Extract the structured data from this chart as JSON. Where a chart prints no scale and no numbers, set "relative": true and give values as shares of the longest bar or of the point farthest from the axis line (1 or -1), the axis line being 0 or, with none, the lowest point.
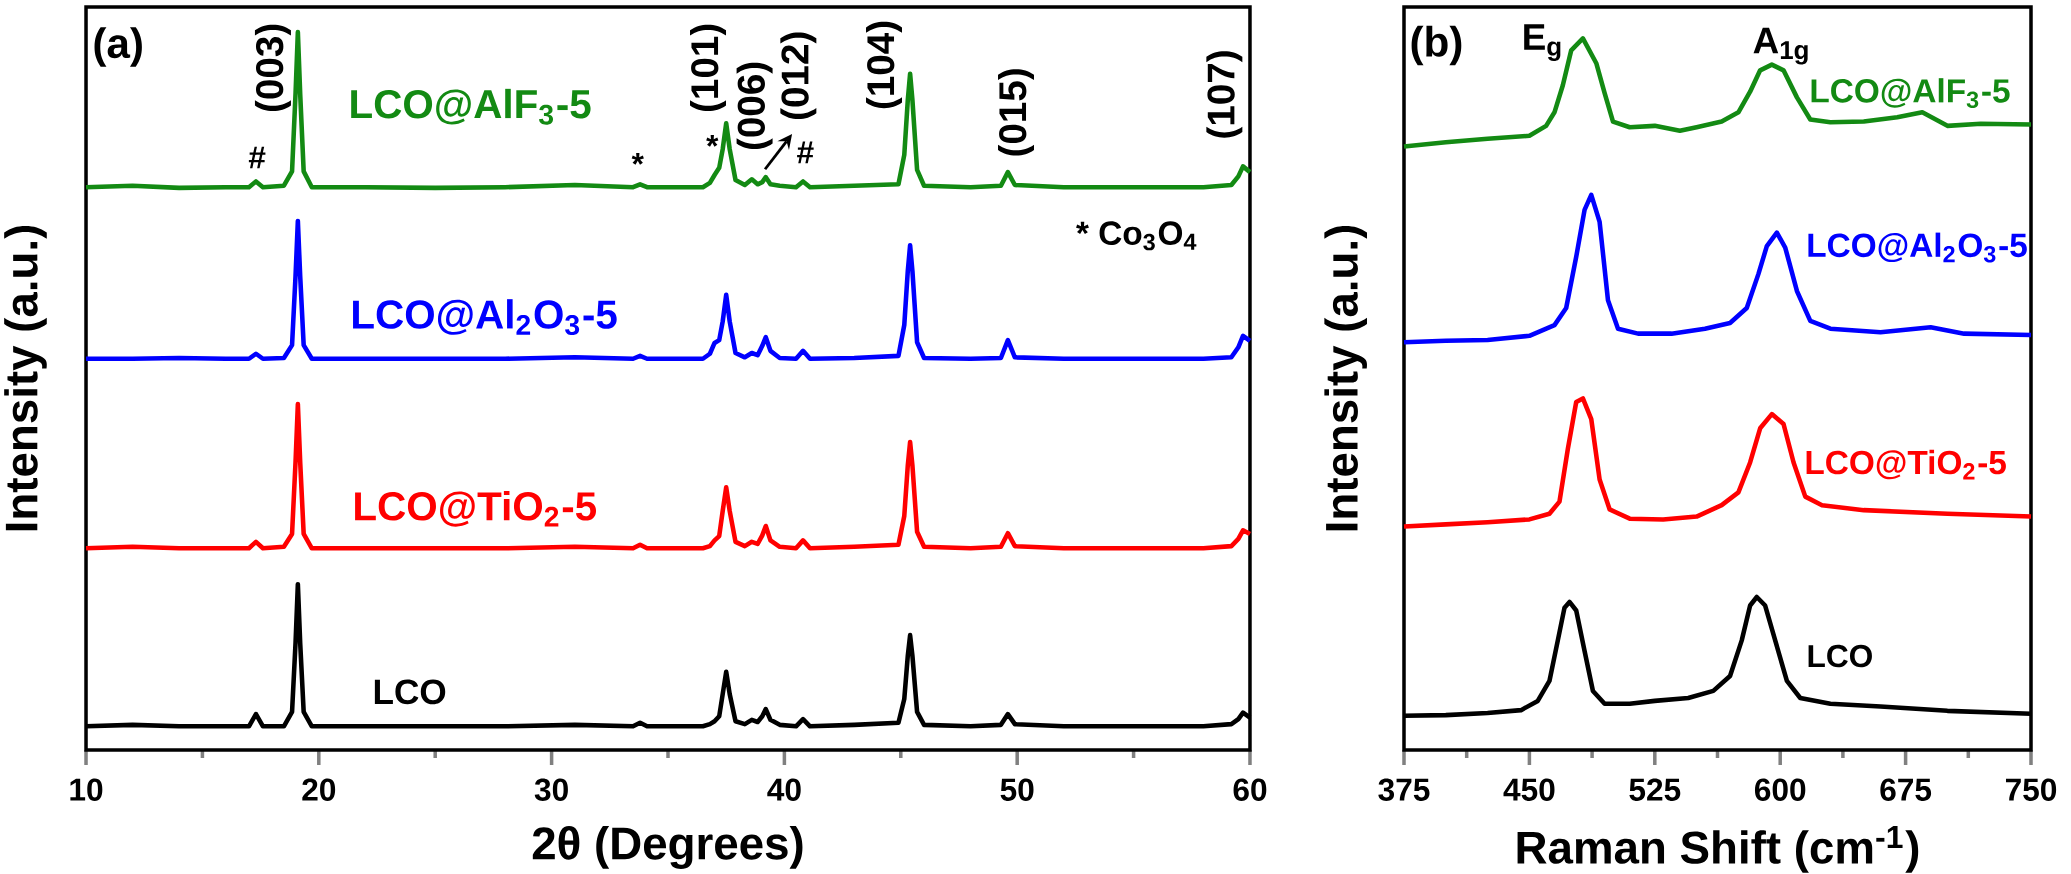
{
  "chart_data": [
    {
      "type": "line",
      "relative": true,
      "xlabel": "2θ (Degrees)",
      "ylabel": "Intensity (a.u.)",
      "xlim": [
        10,
        60
      ],
      "xticks": [
        10,
        20,
        30,
        40,
        50,
        60
      ],
      "x": [
        10,
        12,
        14,
        16,
        17.0,
        17.3,
        17.6,
        18.5,
        18.85,
        19.0,
        19.1,
        19.2,
        19.35,
        19.7,
        22,
        25,
        28,
        31,
        33.5,
        33.8,
        34.1,
        36.5,
        36.8,
        37.0,
        37.2,
        37.35,
        37.5,
        37.65,
        37.9,
        38.3,
        38.6,
        38.85,
        39.05,
        39.2,
        39.4,
        39.8,
        40.5,
        40.8,
        41.1,
        43,
        44.9,
        45.15,
        45.3,
        45.4,
        45.5,
        45.7,
        46.0,
        48,
        49.3,
        49.6,
        49.9,
        52,
        55,
        58,
        59.2,
        59.5,
        59.7,
        60
      ],
      "series": [
        {
          "name": "LCO@AlF$_{3}$-5",
          "color": "#138a13",
          "values": [
            0.784,
            0.786,
            0.783,
            0.784,
            0.784,
            0.792,
            0.784,
            0.786,
            0.806,
            0.914,
            1.0,
            0.914,
            0.806,
            0.784,
            0.784,
            0.783,
            0.784,
            0.787,
            0.784,
            0.788,
            0.784,
            0.784,
            0.79,
            0.801,
            0.811,
            0.837,
            0.873,
            0.837,
            0.794,
            0.787,
            0.795,
            0.788,
            0.791,
            0.798,
            0.788,
            0.786,
            0.784,
            0.792,
            0.784,
            0.786,
            0.788,
            0.829,
            0.905,
            0.942,
            0.905,
            0.808,
            0.786,
            0.784,
            0.786,
            0.805,
            0.787,
            0.784,
            0.784,
            0.784,
            0.787,
            0.799,
            0.813,
            0.805
          ]
        },
        {
          "name": "LCO@Al$_{2}$O$_{3}$-5",
          "color": "#0000ff",
          "values": [
            0.545,
            0.545,
            0.546,
            0.545,
            0.545,
            0.552,
            0.545,
            0.546,
            0.564,
            0.66,
            0.737,
            0.66,
            0.564,
            0.545,
            0.545,
            0.545,
            0.545,
            0.547,
            0.545,
            0.549,
            0.545,
            0.545,
            0.552,
            0.567,
            0.571,
            0.597,
            0.634,
            0.597,
            0.553,
            0.547,
            0.553,
            0.55,
            0.563,
            0.575,
            0.556,
            0.546,
            0.545,
            0.556,
            0.545,
            0.546,
            0.549,
            0.592,
            0.667,
            0.703,
            0.667,
            0.568,
            0.546,
            0.545,
            0.546,
            0.571,
            0.547,
            0.545,
            0.545,
            0.545,
            0.547,
            0.561,
            0.577,
            0.57
          ]
        },
        {
          "name": "LCO@TiO$_{2}$-5",
          "color": "#ff0000",
          "values": [
            0.281,
            0.283,
            0.281,
            0.281,
            0.281,
            0.29,
            0.281,
            0.283,
            0.301,
            0.401,
            0.482,
            0.401,
            0.301,
            0.281,
            0.281,
            0.281,
            0.281,
            0.283,
            0.281,
            0.286,
            0.281,
            0.281,
            0.284,
            0.292,
            0.298,
            0.333,
            0.366,
            0.333,
            0.29,
            0.284,
            0.29,
            0.287,
            0.299,
            0.312,
            0.292,
            0.283,
            0.281,
            0.292,
            0.281,
            0.283,
            0.286,
            0.326,
            0.396,
            0.429,
            0.396,
            0.304,
            0.283,
            0.281,
            0.283,
            0.302,
            0.284,
            0.281,
            0.281,
            0.281,
            0.284,
            0.294,
            0.306,
            0.301
          ]
        },
        {
          "name": "LCO",
          "color": "#000000",
          "values": [
            0.033,
            0.035,
            0.033,
            0.033,
            0.033,
            0.05,
            0.033,
            0.033,
            0.053,
            0.149,
            0.231,
            0.149,
            0.053,
            0.033,
            0.033,
            0.033,
            0.033,
            0.035,
            0.033,
            0.038,
            0.033,
            0.033,
            0.036,
            0.04,
            0.047,
            0.078,
            0.109,
            0.078,
            0.04,
            0.036,
            0.042,
            0.039,
            0.047,
            0.057,
            0.042,
            0.035,
            0.033,
            0.043,
            0.033,
            0.035,
            0.038,
            0.071,
            0.131,
            0.16,
            0.131,
            0.053,
            0.035,
            0.033,
            0.035,
            0.05,
            0.036,
            0.033,
            0.033,
            0.033,
            0.036,
            0.043,
            0.052,
            0.045
          ]
        }
      ],
      "annotations": [
        "(a)",
        "(003)",
        "(101)",
        "(006)",
        "(012)",
        "(104)",
        "(015)",
        "(107)",
        "#",
        "*",
        "*",
        "#",
        "* Co$_{3}$O$_{4}$"
      ]
    },
    {
      "type": "line",
      "relative": true,
      "xlabel": "Raman Shift (cm$^{-1}$)",
      "ylabel": "Intensity (a.u.)",
      "xlim": [
        375,
        750
      ],
      "xticks": [
        375,
        450,
        525,
        600,
        675,
        750
      ],
      "series": [
        {
          "name": "LCO@AlF$_{3}$-5",
          "color": "#138a13",
          "x": [
            375,
            400,
            425,
            450,
            460,
            465,
            470,
            475,
            482,
            490,
            495,
            500,
            510,
            525,
            540,
            550,
            565,
            575,
            582,
            588,
            595,
            602,
            610,
            618,
            630,
            650,
            670,
            685,
            700,
            720,
            750
          ],
          "values": [
            0.848,
            0.854,
            0.859,
            0.863,
            0.877,
            0.896,
            0.934,
            0.983,
            1.0,
            0.965,
            0.923,
            0.883,
            0.875,
            0.877,
            0.87,
            0.875,
            0.883,
            0.896,
            0.925,
            0.955,
            0.963,
            0.955,
            0.917,
            0.886,
            0.882,
            0.883,
            0.889,
            0.896,
            0.877,
            0.88,
            0.879
          ]
        },
        {
          "name": "LCO@Al$_{2}$O$_{3}$-5",
          "color": "#0000ff",
          "x": [
            375,
            400,
            425,
            450,
            465,
            472,
            478,
            483,
            487,
            492,
            497,
            503,
            515,
            535,
            555,
            570,
            580,
            587,
            592,
            598,
            603,
            610,
            618,
            630,
            660,
            690,
            710,
            750
          ],
          "values": [
            0.573,
            0.575,
            0.576,
            0.582,
            0.597,
            0.621,
            0.693,
            0.759,
            0.78,
            0.742,
            0.632,
            0.592,
            0.585,
            0.585,
            0.592,
            0.6,
            0.621,
            0.669,
            0.708,
            0.727,
            0.706,
            0.645,
            0.603,
            0.592,
            0.587,
            0.594,
            0.585,
            0.583
          ]
        },
        {
          "name": "LCO@TiO$_{2}$-5",
          "color": "#ff0000",
          "x": [
            375,
            400,
            425,
            450,
            462,
            468,
            473,
            478,
            482,
            487,
            492,
            498,
            510,
            530,
            550,
            565,
            575,
            582,
            588,
            595,
            602,
            608,
            615,
            625,
            650,
            700,
            750
          ],
          "values": [
            0.314,
            0.317,
            0.32,
            0.324,
            0.332,
            0.349,
            0.423,
            0.489,
            0.494,
            0.465,
            0.38,
            0.338,
            0.325,
            0.324,
            0.328,
            0.344,
            0.362,
            0.404,
            0.452,
            0.472,
            0.458,
            0.404,
            0.356,
            0.344,
            0.337,
            0.332,
            0.328
          ]
        },
        {
          "name": "LCO",
          "color": "#000000",
          "x": [
            375,
            400,
            425,
            445,
            455,
            462,
            467,
            471,
            474,
            478,
            483,
            488,
            495,
            510,
            525,
            545,
            560,
            570,
            577,
            582,
            586,
            591,
            597,
            604,
            612,
            630,
            660,
            700,
            750
          ],
          "values": [
            0.048,
            0.049,
            0.052,
            0.056,
            0.069,
            0.097,
            0.154,
            0.2,
            0.208,
            0.196,
            0.139,
            0.083,
            0.065,
            0.065,
            0.069,
            0.073,
            0.083,
            0.104,
            0.154,
            0.203,
            0.215,
            0.203,
            0.154,
            0.097,
            0.073,
            0.065,
            0.061,
            0.055,
            0.051
          ]
        }
      ],
      "annotations": [
        "(b)",
        "E$_{g}$",
        "A$_{1g}$"
      ]
    }
  ]
}
